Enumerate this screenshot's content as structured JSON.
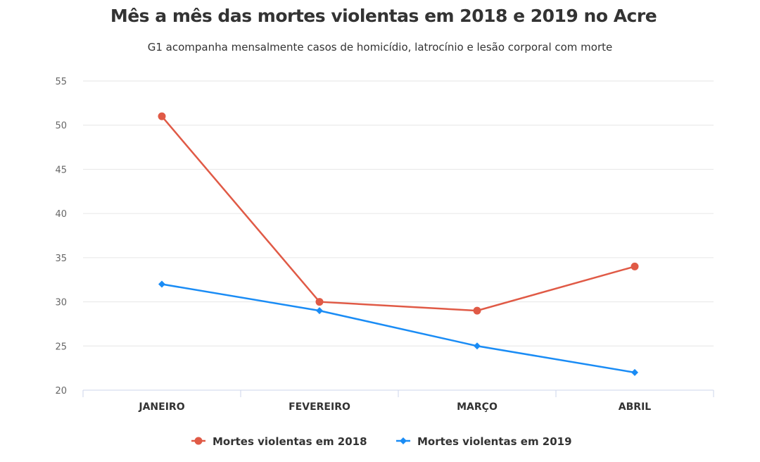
{
  "chart_data": {
    "type": "line",
    "title": "Mês a mês das mortes violentas em 2018 e 2019 no Acre",
    "subtitle": "G1 acompanha mensalmente casos de homicídio, latrocínio e lesão corporal com morte",
    "categories": [
      "JANEIRO",
      "FEVEREIRO",
      "MARÇO",
      "ABRIL"
    ],
    "ylim": [
      20,
      55
    ],
    "yticks": [
      20,
      25,
      30,
      35,
      40,
      45,
      50,
      55
    ],
    "grid": true,
    "legend": "bottom",
    "series": [
      {
        "name": "Mortes violentas em 2018",
        "values": [
          51,
          30,
          29,
          34
        ],
        "color": "#e05a46",
        "marker": "circle"
      },
      {
        "name": "Mortes violentas em 2019",
        "values": [
          32,
          29,
          25,
          22
        ],
        "color": "#1a8cf5",
        "marker": "diamond"
      }
    ]
  }
}
